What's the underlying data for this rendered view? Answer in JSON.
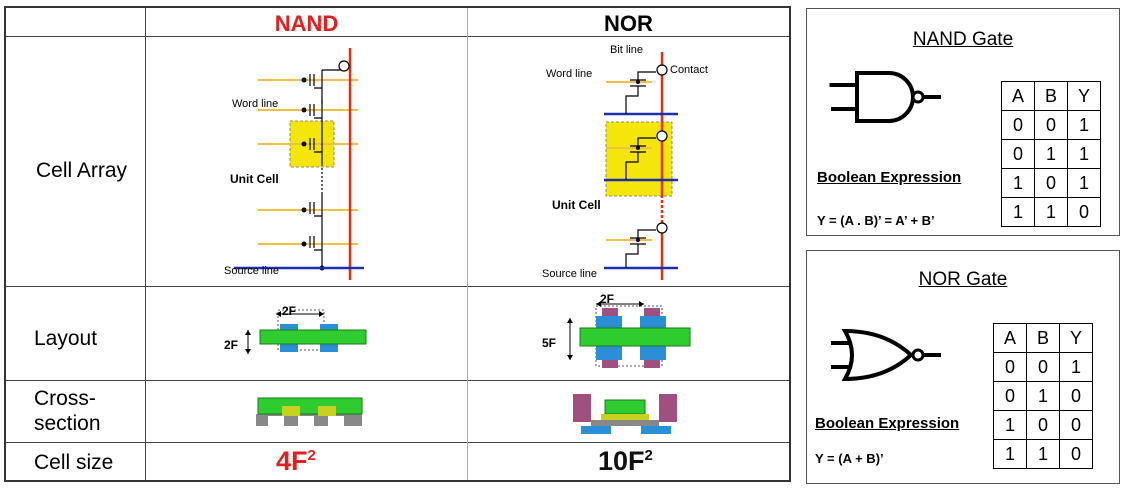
{
  "comparison": {
    "columns": {
      "nand": "NAND",
      "nor": "NOR"
    },
    "rows": {
      "cell_array": "Cell Array",
      "layout": "Layout",
      "cross_section": "Cross-section",
      "cell_size": "Cell size"
    },
    "nand_array": {
      "word_line": "Word line",
      "unit_cell": "Unit Cell",
      "source_line": "Source line"
    },
    "nor_array": {
      "bit_line": "Bit line",
      "word_line": "Word line",
      "contact": "Contact",
      "unit_cell": "Unit Cell",
      "source_line": "Source line"
    },
    "nand_layout": {
      "width_label": "2F",
      "height_label": "2F"
    },
    "nor_layout": {
      "width_label": "2F",
      "height_label": "5F"
    },
    "cell_size": {
      "nand": {
        "base": "4F",
        "exp": "2",
        "color": "#e02020"
      },
      "nor": {
        "base": "10F",
        "exp": "2",
        "color": "#111111"
      }
    }
  },
  "nand_gate": {
    "title": "NAND Gate",
    "bool_label": "Boolean Expression",
    "expression": "Y = (A . B)’ = A’ + B’",
    "headers": [
      "A",
      "B",
      "Y"
    ],
    "rows": [
      [
        "0",
        "0",
        "1"
      ],
      [
        "0",
        "1",
        "1"
      ],
      [
        "1",
        "0",
        "1"
      ],
      [
        "1",
        "1",
        "0"
      ]
    ]
  },
  "nor_gate": {
    "title": "NOR Gate",
    "bool_label": "Boolean Expression",
    "expression": "Y = (A + B)’",
    "headers": [
      "A",
      "B",
      "Y"
    ],
    "rows": [
      [
        "0",
        "0",
        "1"
      ],
      [
        "0",
        "1",
        "0"
      ],
      [
        "1",
        "0",
        "0"
      ],
      [
        "1",
        "1",
        "0"
      ]
    ]
  },
  "colors": {
    "nand_head": "#e02020",
    "word_line": "#f0c040",
    "bit_line": "#e03010",
    "source_line": "#1a2fb0",
    "unit_cell_fill": "#f5e60a",
    "active_green": "#2ecc2e",
    "gate_blue": "#2b8fd6",
    "contact_purple": "#a05080"
  }
}
